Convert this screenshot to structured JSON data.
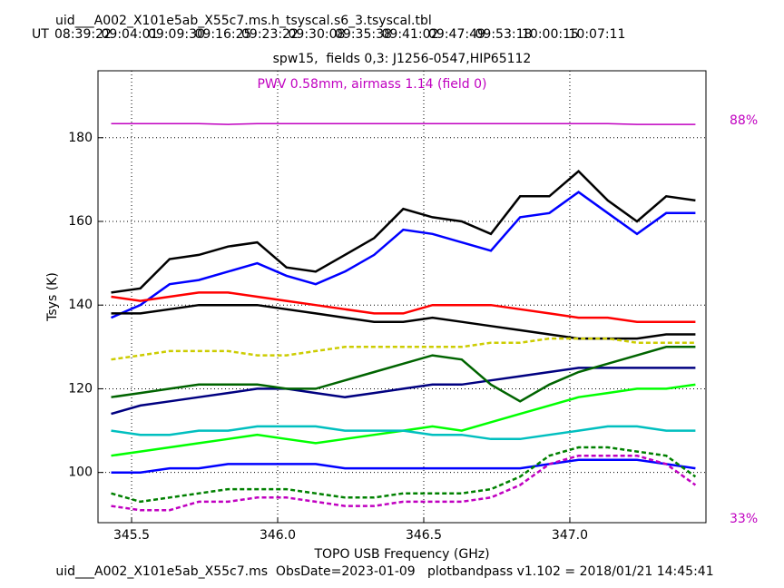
{
  "chart_data": {
    "type": "line",
    "title": "uid___A002_X101e5ab_X55c7.ms.h_tsyscal.s6_3.tsyscal.tbl",
    "top_axis_label": "UT",
    "top_axis_ticks": [
      "08:39:22",
      "09:04:01",
      "09:09:30",
      "09:16:25",
      "09:23:22",
      "09:30:08",
      "09:35:38",
      "09:41:02",
      "09:47:49",
      "09:53:18",
      "10:00:15",
      "10:07:11"
    ],
    "subtitle": "spw15,  fields 0,3: J1256-0547,HIP65112",
    "annotation": "PWV 0.58mm, airmass 1.14 (field 0)",
    "x_label": "TOPO USB Frequency (GHz)",
    "y_label": "Tsys (K)",
    "footer": "uid___A002_X101e5ab_X55c7.ms  ObsDate=2023-01-09   plotbandpass v1.102 = 2018/01/21 14:45:41",
    "xlim": [
      345.385,
      347.466
    ],
    "xticks": [
      345.5,
      {
        "value": 346,
        "label": "346.0"
      },
      346.5,
      {
        "value": 347,
        "label": "347.0"
      }
    ],
    "ylim": [
      88,
      196
    ],
    "yticks": [
      100,
      120,
      140,
      160,
      180
    ],
    "y2lim": [
      32.5,
      94.9
    ],
    "y2ticks": [
      {
        "value": 88,
        "label": "88%"
      },
      {
        "value": 33,
        "label": "33%"
      }
    ],
    "grid": true,
    "x": [
      345.43,
      345.53,
      345.63,
      345.73,
      345.83,
      345.93,
      346.03,
      346.13,
      346.23,
      346.33,
      346.43,
      346.53,
      346.63,
      346.73,
      346.83,
      346.93,
      347.03,
      347.13,
      347.23,
      347.33,
      347.43
    ],
    "series": [
      {
        "color": "#000000",
        "dashed": false,
        "values": [
          143,
          144,
          151,
          152,
          154,
          155,
          149,
          148,
          152,
          156,
          163,
          161,
          160,
          157,
          166,
          166,
          172,
          165,
          160,
          166,
          165
        ]
      },
      {
        "color": "#0000ff",
        "dashed": false,
        "values": [
          137,
          140,
          145,
          146,
          148,
          150,
          147,
          145,
          148,
          152,
          158,
          157,
          155,
          153,
          161,
          162,
          167,
          162,
          157,
          162,
          162
        ]
      },
      {
        "color": "#ff0000",
        "dashed": false,
        "values": [
          142,
          141,
          142,
          143,
          143,
          142,
          141,
          140,
          139,
          138,
          138,
          140,
          140,
          140,
          139,
          138,
          137,
          137,
          136,
          136,
          136
        ]
      },
      {
        "color": "#000000",
        "dashed": false,
        "values": [
          138,
          138,
          139,
          140,
          140,
          140,
          139,
          138,
          137,
          136,
          136,
          137,
          136,
          135,
          134,
          133,
          132,
          132,
          132,
          133,
          133
        ]
      },
      {
        "color": "#cccc00",
        "dashed": true,
        "values": [
          127,
          128,
          129,
          129,
          129,
          128,
          128,
          129,
          130,
          130,
          130,
          130,
          130,
          131,
          131,
          132,
          132,
          132,
          131,
          131,
          131
        ]
      },
      {
        "color": "#000080",
        "dashed": false,
        "values": [
          114,
          116,
          117,
          118,
          119,
          120,
          120,
          119,
          118,
          119,
          120,
          121,
          121,
          122,
          123,
          124,
          125,
          125,
          125,
          125,
          125
        ]
      },
      {
        "color": "#00ff00",
        "dashed": false,
        "values": [
          104,
          105,
          106,
          107,
          108,
          109,
          108,
          107,
          108,
          109,
          110,
          111,
          110,
          112,
          114,
          116,
          118,
          119,
          120,
          120,
          121
        ]
      },
      {
        "color": "#00bfbf",
        "dashed": false,
        "values": [
          110,
          109,
          109,
          110,
          110,
          111,
          111,
          111,
          110,
          110,
          110,
          109,
          109,
          108,
          108,
          109,
          110,
          111,
          111,
          110,
          110
        ]
      },
      {
        "color": "#0000ff",
        "dashed": false,
        "values": [
          100,
          100,
          101,
          101,
          102,
          102,
          102,
          102,
          101,
          101,
          101,
          101,
          101,
          101,
          101,
          102,
          103,
          103,
          103,
          102,
          101
        ]
      },
      {
        "color": "#c000c0",
        "dashed": true,
        "values": [
          92,
          91,
          91,
          93,
          93,
          94,
          94,
          93,
          92,
          92,
          93,
          93,
          93,
          94,
          97,
          102,
          104,
          104,
          104,
          102,
          97
        ]
      },
      {
        "color": "#008000",
        "dashed": true,
        "values": [
          95,
          93,
          94,
          95,
          96,
          96,
          96,
          95,
          94,
          94,
          95,
          95,
          95,
          96,
          99,
          104,
          106,
          106,
          105,
          104,
          99
        ]
      },
      {
        "color": "#006400",
        "dashed": false,
        "values": [
          118,
          119,
          120,
          121,
          121,
          121,
          120,
          120,
          122,
          124,
          126,
          128,
          127,
          121,
          117,
          121,
          124,
          126,
          128,
          130,
          130
        ]
      },
      {
        "color": "#c000c0",
        "dashed": false,
        "axis": "y2",
        "values": [
          87.6,
          87.6,
          87.6,
          87.6,
          87.5,
          87.6,
          87.6,
          87.6,
          87.6,
          87.6,
          87.6,
          87.6,
          87.6,
          87.6,
          87.6,
          87.6,
          87.6,
          87.6,
          87.5,
          87.5,
          87.5
        ]
      }
    ]
  }
}
